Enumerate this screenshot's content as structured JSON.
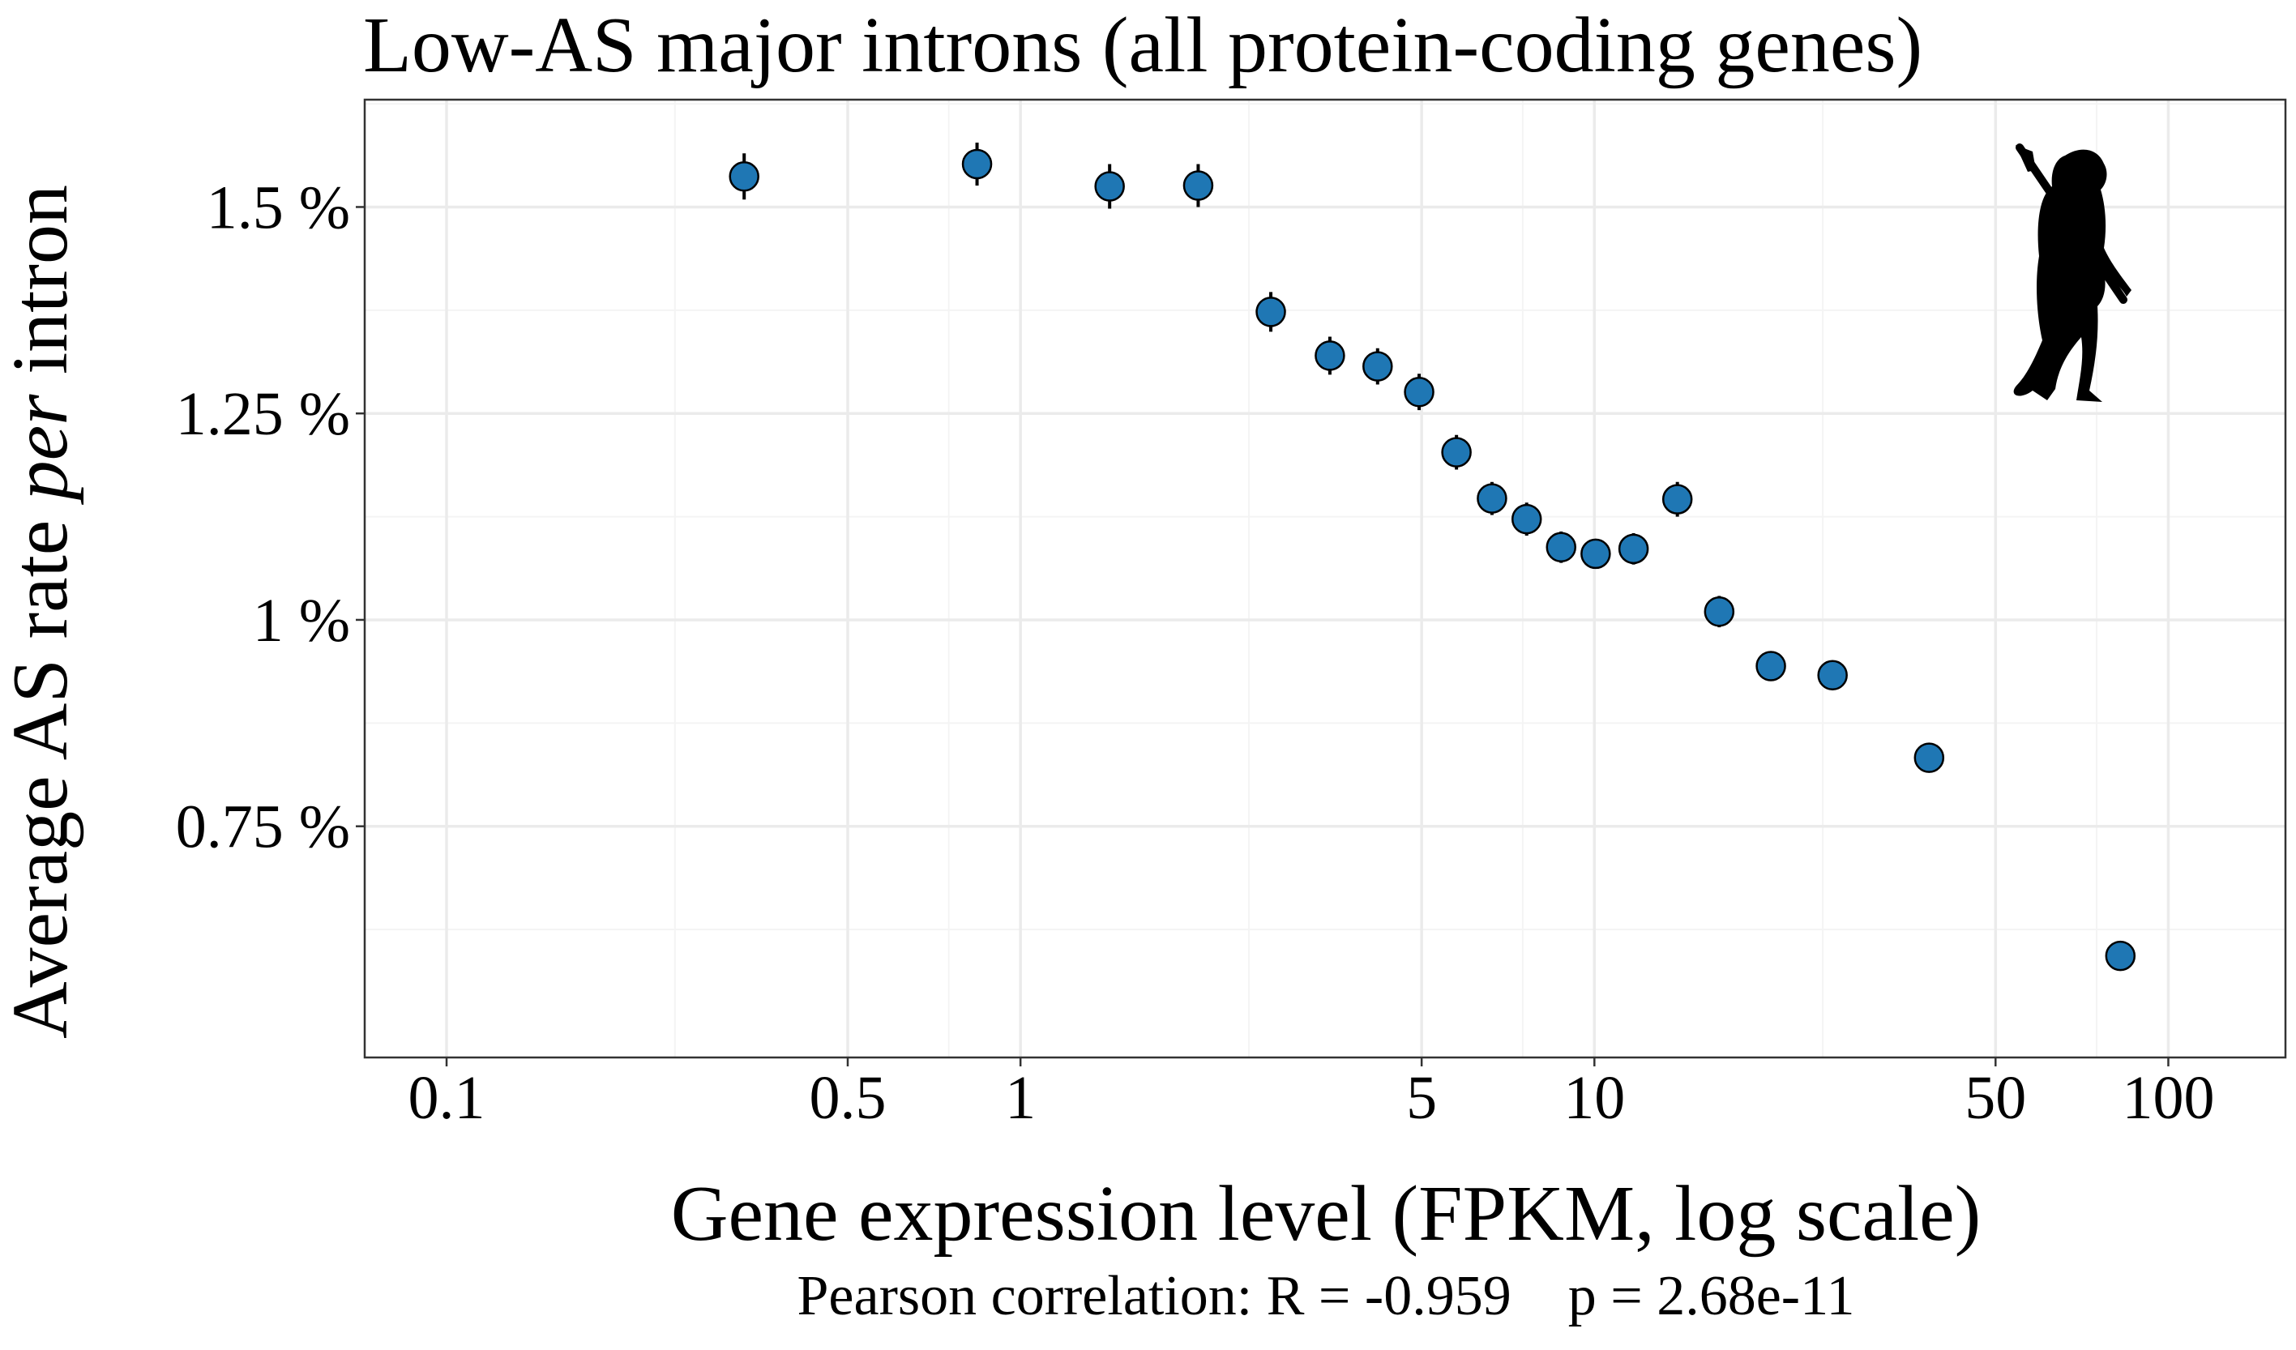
{
  "chart_data": {
    "type": "scatter",
    "title": "Low-AS major introns (all protein-coding genes)",
    "xlabel": "Gene expression level (FPKM, log scale)",
    "ylabel": {
      "prefix": "Average AS rate ",
      "italic": "per",
      "suffix": " intron"
    },
    "footnote": "Pearson correlation: R = -0.959    p = 2.68e-11",
    "x_scale": "log10",
    "xlim": [
      0.072,
      160
    ],
    "ylim": [
      0.47,
      1.63
    ],
    "x_ticks": [
      {
        "value": 0.1,
        "label": "0.1"
      },
      {
        "value": 0.5,
        "label": "0.5"
      },
      {
        "value": 1,
        "label": "1"
      },
      {
        "value": 5,
        "label": "5"
      },
      {
        "value": 10,
        "label": "10"
      },
      {
        "value": 50,
        "label": "50"
      },
      {
        "value": 100,
        "label": "100"
      }
    ],
    "x_minor_grid": [
      0.25,
      0.75,
      2.5,
      7.5,
      25,
      75
    ],
    "y_ticks": [
      {
        "value": 0.75,
        "label": "0.75 %"
      },
      {
        "value": 1.0,
        "label": "1 %"
      },
      {
        "value": 1.25,
        "label": "1.25 %"
      },
      {
        "value": 1.5,
        "label": "1.5 %"
      }
    ],
    "y_minor_grid": [
      0.625,
      0.875,
      1.125,
      1.375,
      1.625
    ],
    "grid": true,
    "point_color": "#1f77b4",
    "points": [
      {
        "x": 0.33,
        "y": 1.537,
        "err": 0.028
      },
      {
        "x": 0.84,
        "y": 1.552,
        "err": 0.026
      },
      {
        "x": 1.43,
        "y": 1.525,
        "err": 0.027
      },
      {
        "x": 2.04,
        "y": 1.526,
        "err": 0.026
      },
      {
        "x": 2.73,
        "y": 1.373,
        "err": 0.024
      },
      {
        "x": 3.46,
        "y": 1.32,
        "err": 0.023
      },
      {
        "x": 4.19,
        "y": 1.307,
        "err": 0.022
      },
      {
        "x": 4.95,
        "y": 1.276,
        "err": 0.022
      },
      {
        "x": 5.75,
        "y": 1.203,
        "err": 0.021
      },
      {
        "x": 6.63,
        "y": 1.147,
        "err": 0.02
      },
      {
        "x": 7.62,
        "y": 1.122,
        "err": 0.02
      },
      {
        "x": 8.75,
        "y": 1.088,
        "err": 0.019
      },
      {
        "x": 10.05,
        "y": 1.08,
        "err": 0.018
      },
      {
        "x": 11.7,
        "y": 1.086,
        "err": 0.019
      },
      {
        "x": 13.95,
        "y": 1.146,
        "err": 0.021
      },
      {
        "x": 16.5,
        "y": 1.01,
        "err": 0.019
      },
      {
        "x": 20.3,
        "y": 0.944,
        "err": 0.017
      },
      {
        "x": 26.0,
        "y": 0.933,
        "err": 0.017
      },
      {
        "x": 38.3,
        "y": 0.833,
        "err": 0.013
      },
      {
        "x": 82.5,
        "y": 0.593,
        "err": 0.012
      }
    ],
    "icon": "human-silhouette-with-spear-icon"
  }
}
